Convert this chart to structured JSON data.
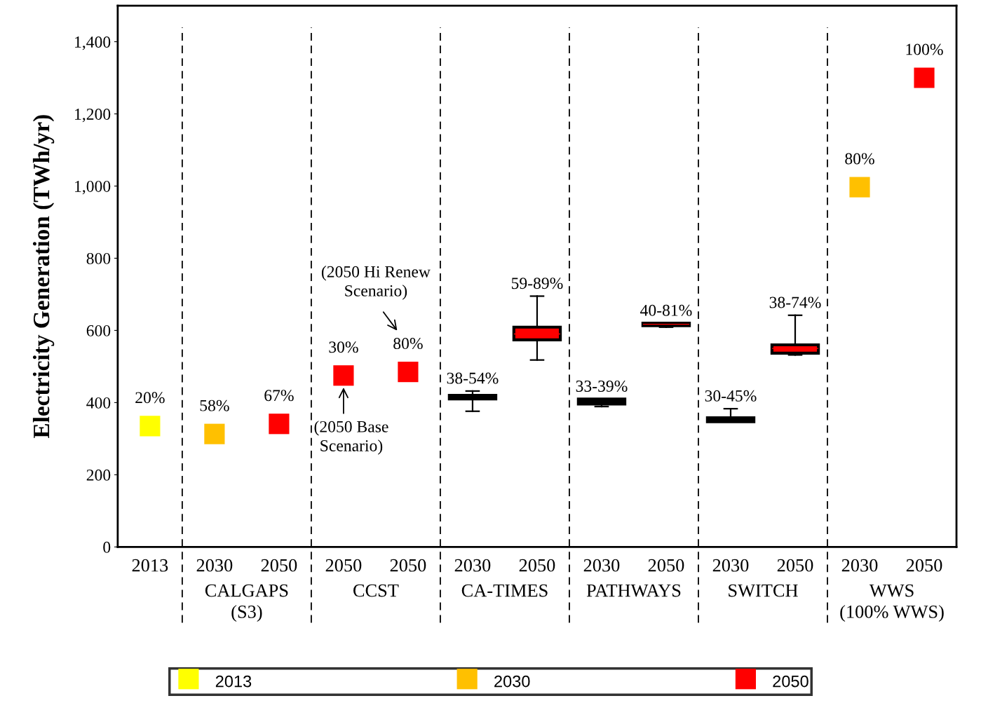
{
  "chart_data": {
    "type": "scatter",
    "ylabel": "Electricity Generation (TWh/yr)",
    "categories": [
      "2013",
      "2030",
      "2050",
      "2050",
      "2050",
      "2030",
      "2050",
      "2030",
      "2050",
      "2030",
      "2050",
      "2030",
      "2050"
    ],
    "ylim": [
      0,
      1500
    ],
    "yticks": [
      0,
      200,
      400,
      600,
      800,
      {
        "value": 1000,
        "label": "1,000"
      },
      {
        "value": 1200,
        "label": "1,200"
      },
      {
        "value": 1400,
        "label": "1,400"
      }
    ],
    "marker": "square",
    "grid": false,
    "legend": "bottom",
    "series": [
      {
        "name": "2013",
        "color": "#ffff00",
        "values": [
          335,
          null,
          null,
          null,
          null,
          null,
          null,
          null,
          null,
          null,
          null,
          null,
          null
        ]
      },
      {
        "name": "2030",
        "color": "#ffc000",
        "values": [
          null,
          313,
          null,
          null,
          null,
          null,
          null,
          null,
          null,
          null,
          null,
          997,
          null
        ]
      },
      {
        "name": "2050",
        "color": "#ff0000",
        "values": [
          null,
          null,
          341,
          475,
          485,
          null,
          null,
          null,
          null,
          null,
          null,
          null,
          1300
        ]
      },
      {
        "type": "box",
        "color": "#000000",
        "boxes": [
          null,
          null,
          null,
          null,
          null,
          {
            "low": 376,
            "q1": 410,
            "median": 415,
            "q3": 420,
            "high": 432
          },
          null,
          {
            "low": 389,
            "q1": 396,
            "median": 403,
            "q3": 410,
            "high": 410
          },
          null,
          {
            "low": 347,
            "q1": 347,
            "median": 352,
            "q3": 358,
            "high": 383
          },
          null,
          null,
          null
        ]
      },
      {
        "type": "box",
        "color": "#ff0000",
        "boxes": [
          null,
          null,
          null,
          null,
          null,
          null,
          {
            "low": 518,
            "q1": 574,
            "median": 590,
            "q3": 609,
            "high": 695
          },
          null,
          {
            "low": 609,
            "q1": 613,
            "median": 617,
            "q3": 620,
            "high": 620
          },
          null,
          {
            "low": 532,
            "q1": 537,
            "median": 550,
            "q3": 560,
            "high": 642
          },
          null,
          null
        ]
      }
    ],
    "annotations": [
      "CALGAPS\n(S3)",
      "CCST",
      "CA-TIMES",
      "PATHWAYS",
      "SWITCH",
      "WWS\n(100% WWS)",
      "(2050 Base\nScenario)",
      "(2050 Hi Renew\nScenario)",
      "20%",
      "58%",
      "67%",
      "30%",
      "80%",
      "38-54%",
      "59-89%",
      "33-39%",
      "40-81%",
      "30-45%",
      "38-74%",
      "80%",
      "100%"
    ]
  }
}
